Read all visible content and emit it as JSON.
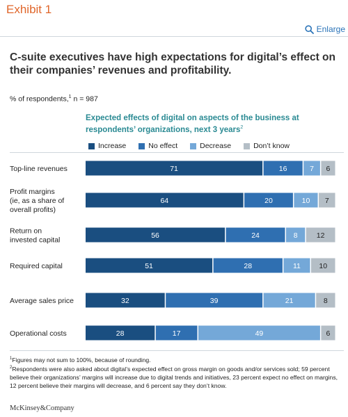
{
  "header": {
    "exhibit": "Exhibit 1",
    "enlarge_label": "Enlarge"
  },
  "headline": "C-suite executives have high expectations for digital’s effect on their companies’ revenues and profitability.",
  "respondents_note": {
    "text": "% of respondents,",
    "footnote_ref": "1",
    "n": " n = 987"
  },
  "chart_title": {
    "text": "Expected effects of digital on aspects of the business at respondents’ organizations, next 3 years",
    "footnote_ref": "2"
  },
  "colors": {
    "increase": "#1a4e80",
    "no_effect": "#2f6fb1",
    "decrease": "#74a8d8",
    "dont_know": "#b4bec6",
    "title_teal": "#2a8a93",
    "exhibit_orange": "#e0662a"
  },
  "chart_data": {
    "type": "bar",
    "orientation": "horizontal",
    "stacked": true,
    "categories": [
      "Top-line revenues",
      "Profit margins\n(ie, as a share of\noverall profits)",
      "Return on\ninvested capital",
      "Required capital",
      "Average sales price",
      "Operational costs"
    ],
    "series": [
      {
        "name": "Increase",
        "values": [
          71,
          64,
          56,
          51,
          32,
          28
        ]
      },
      {
        "name": "No effect",
        "values": [
          16,
          20,
          24,
          28,
          39,
          17
        ]
      },
      {
        "name": "Decrease",
        "values": [
          7,
          10,
          8,
          11,
          21,
          49
        ]
      },
      {
        "name": "Don’t know",
        "values": [
          6,
          7,
          12,
          10,
          8,
          6
        ]
      }
    ],
    "legend_position": "top",
    "grid": false
  },
  "footnotes": [
    {
      "ref": "1",
      "text": "Figures may not sum to 100%, because of rounding."
    },
    {
      "ref": "2",
      "text": "Respondents were also asked about digital’s expected effect on gross margin on goods and/or services sold; 59 percent believe their organizations’ margins will increase due to digital trends and initiatives, 23 percent expect no effect on margins, 12 percent believe their margins will decrease, and 6 percent say they don’t know."
    }
  ],
  "logo": "McKinsey&Company"
}
